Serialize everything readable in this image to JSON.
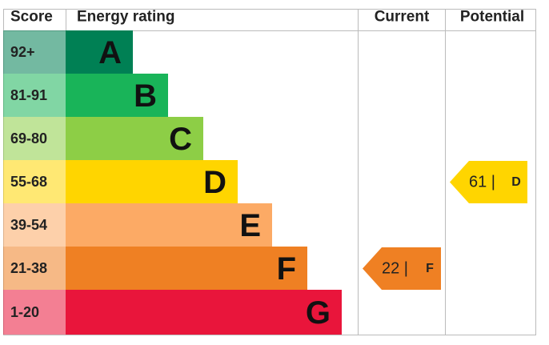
{
  "header": {
    "score": "Score",
    "rating": "Energy rating",
    "current": "Current",
    "potential": "Potential"
  },
  "bands": [
    {
      "score": "92+",
      "letter": "A",
      "color": "#008054"
    },
    {
      "score": "81-91",
      "letter": "B",
      "color": "#19b459"
    },
    {
      "score": "69-80",
      "letter": "C",
      "color": "#8dce46"
    },
    {
      "score": "55-68",
      "letter": "D",
      "color": "#ffd500"
    },
    {
      "score": "39-54",
      "letter": "E",
      "color": "#fcaa65"
    },
    {
      "score": "21-38",
      "letter": "F",
      "color": "#ef8023"
    },
    {
      "score": "1-20",
      "letter": "G",
      "color": "#e9153b"
    }
  ],
  "current": {
    "label": "22 |",
    "rating": "F"
  },
  "potential": {
    "label": "61 |",
    "rating": "D"
  }
}
